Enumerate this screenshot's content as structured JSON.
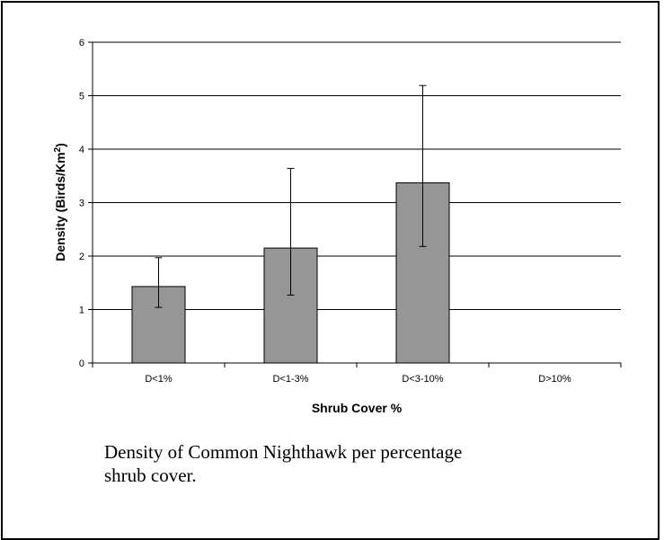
{
  "chart_data": {
    "type": "bar",
    "categories": [
      "D<1%",
      "D<1-3%",
      "D<3-10%",
      "D>10%"
    ],
    "values": [
      1.43,
      2.15,
      3.37,
      null
    ],
    "error_low": [
      1.04,
      1.27,
      2.18,
      null
    ],
    "error_high": [
      1.97,
      3.64,
      5.19,
      null
    ],
    "xlabel": "Shrub Cover %",
    "ylabel_main": "Density (Birds/Km",
    "ylabel_sup": "2",
    "ylabel_close": ")",
    "ylim": [
      0,
      6
    ],
    "yticks": [
      0,
      1,
      2,
      3,
      4,
      5,
      6
    ],
    "grid": true,
    "bar_color": "#969696",
    "legend": "none"
  },
  "caption": "Density of Common Nighthawk per percentage shrub cover."
}
